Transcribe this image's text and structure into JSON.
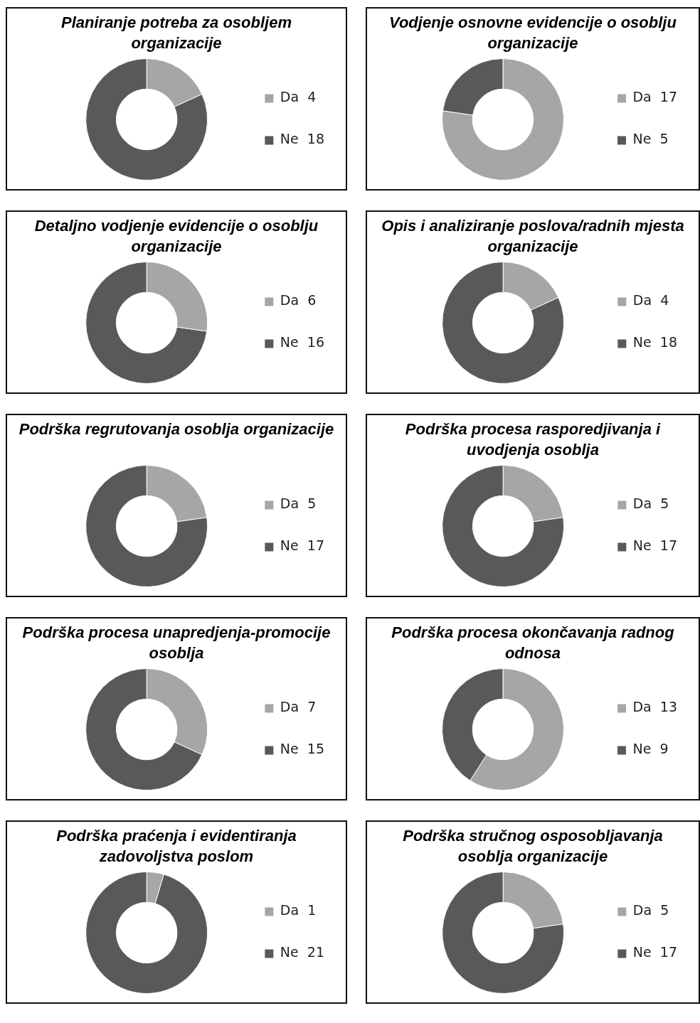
{
  "chart_data": [
    {
      "type": "donut",
      "title": "Planiranje potreba za osobljem organizacije",
      "categories": [
        "Da  4",
        "Ne  18"
      ],
      "values": [
        4,
        18
      ],
      "colors": [
        "#a6a6a6",
        "#595959"
      ],
      "legend": "right"
    },
    {
      "type": "donut",
      "title": "Vodjenje osnovne evidencije o osoblju organizacije",
      "categories": [
        "Da  17",
        "Ne  5"
      ],
      "values": [
        17,
        5
      ],
      "colors": [
        "#a6a6a6",
        "#595959"
      ],
      "legend": "right"
    },
    {
      "type": "donut",
      "title": "Detaljno vodjenje evidencije o osoblju organizacije",
      "categories": [
        "Da  6",
        "Ne  16"
      ],
      "values": [
        6,
        16
      ],
      "colors": [
        "#a6a6a6",
        "#595959"
      ],
      "legend": "right"
    },
    {
      "type": "donut",
      "title": "Opis i analiziranje poslova/radnih mjesta organizacije",
      "categories": [
        "Da  4",
        "Ne  18"
      ],
      "values": [
        4,
        18
      ],
      "colors": [
        "#a6a6a6",
        "#595959"
      ],
      "legend": "right"
    },
    {
      "type": "donut",
      "title": "Podrška regrutovanja osoblja organizacije",
      "categories": [
        "Da  5",
        "Ne  17"
      ],
      "values": [
        5,
        17
      ],
      "colors": [
        "#a6a6a6",
        "#595959"
      ],
      "legend": "right"
    },
    {
      "type": "donut",
      "title": "Podrška procesa rasporedjivanja i uvodjenja osoblja",
      "categories": [
        "Da  5",
        "Ne  17"
      ],
      "values": [
        5,
        17
      ],
      "colors": [
        "#a6a6a6",
        "#595959"
      ],
      "legend": "right"
    },
    {
      "type": "donut",
      "title": "Podrška procesa unapredjenja-promocije osoblja",
      "categories": [
        "Da  7",
        "Ne  15"
      ],
      "values": [
        7,
        15
      ],
      "colors": [
        "#a6a6a6",
        "#595959"
      ],
      "legend": "right"
    },
    {
      "type": "donut",
      "title": "Podrška procesa okončavanja radnog odnosa",
      "categories": [
        "Da  13",
        "Ne  9"
      ],
      "values": [
        13,
        9
      ],
      "colors": [
        "#a6a6a6",
        "#595959"
      ],
      "legend": "right"
    },
    {
      "type": "donut",
      "title": "Podrška praćenja i evidentiranja zadovoljstva poslom",
      "categories": [
        "Da  1",
        "Ne  21"
      ],
      "values": [
        1,
        21
      ],
      "colors": [
        "#a6a6a6",
        "#595959"
      ],
      "legend": "right"
    },
    {
      "type": "donut",
      "title": "Podrška stručnog osposobljavanja osoblja organizacije",
      "categories": [
        "Da  5",
        "Ne  17"
      ],
      "values": [
        5,
        17
      ],
      "colors": [
        "#a6a6a6",
        "#595959"
      ],
      "legend": "right"
    }
  ]
}
